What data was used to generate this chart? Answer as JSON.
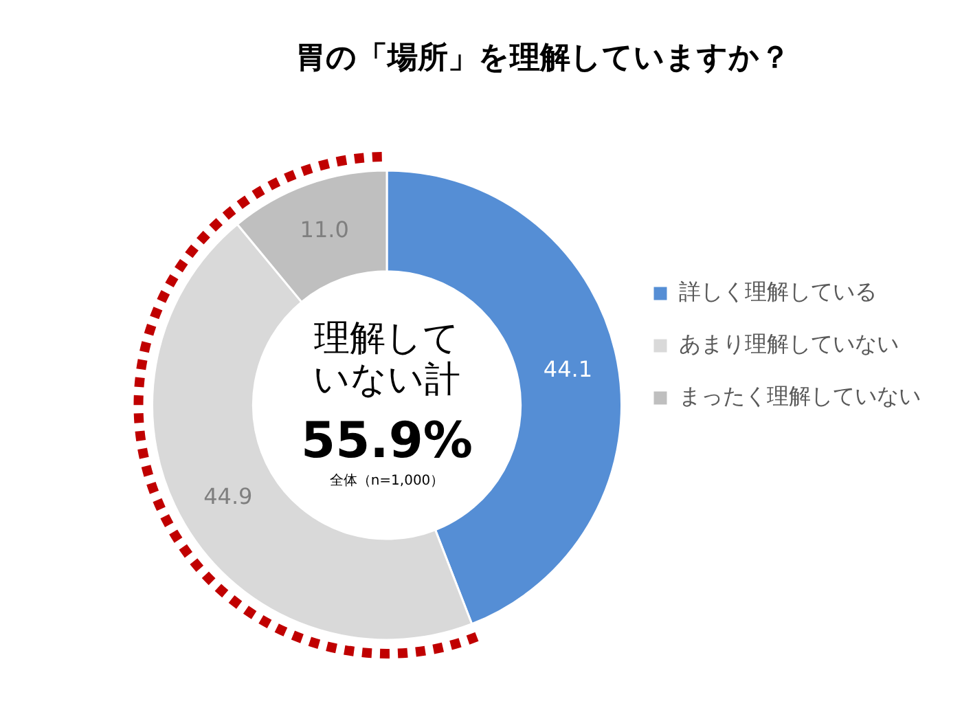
{
  "chart_data": {
    "type": "donut",
    "title": "胃の「場所」を理解していますか？",
    "categories": [
      "詳しく理解している",
      "あまり理解していない",
      "まったく理解していない"
    ],
    "values": [
      44.1,
      44.9,
      11.0
    ],
    "colors": [
      "#558ed5",
      "#d9d9d9",
      "#bfbfbf"
    ],
    "value_labels": [
      "44.1",
      "44.9",
      "11.0"
    ],
    "legend": "right",
    "annotations": [
      "理解していない計",
      "55.9%",
      "全体（n=1,000）"
    ]
  }
}
